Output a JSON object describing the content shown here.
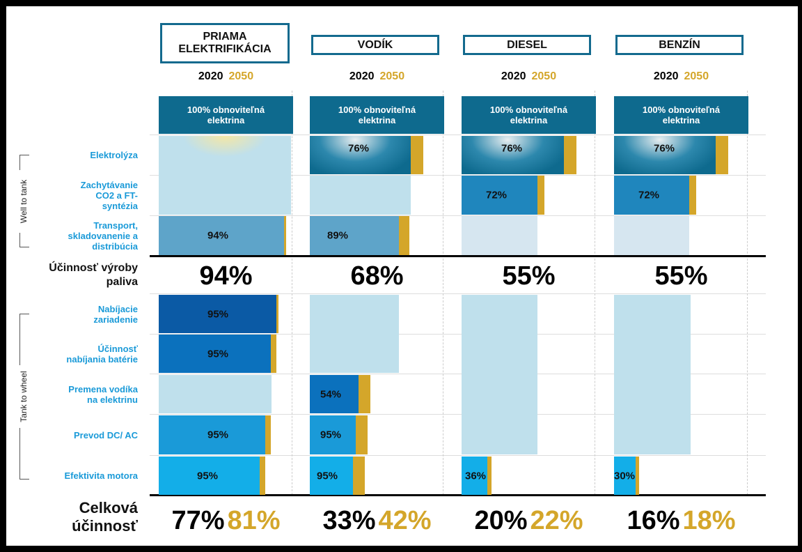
{
  "side_labels": [
    "Well to tank",
    "Tank to wheel"
  ],
  "row_labels": {
    "electrolysis": "Elektrolýza",
    "capture": "Zachytávanie CO2 a FT-syntézia",
    "transport": "Transport, skladovanenie a distribúcia",
    "charging": "Nabíjacie zariadenie",
    "battery": "Účinnosť nabíjania batérie",
    "conversion": "Premena vodíka na elektrinu",
    "dcac": "Prevod DC/ AC",
    "motor": "Efektivita motora"
  },
  "fuel_efficiency_label": "Účinnosť výroby paliva",
  "total_label": "Celková účinnosť",
  "columns": [
    {
      "title": "PRIAMA ELEKTRIFIKÁCIA",
      "years": [
        "2020",
        "2050"
      ],
      "source": "100% obnoviteľná elektrina",
      "steps": {
        "transport": "94%",
        "charging": "95%",
        "battery": "95%",
        "dcac": "95%",
        "motor": "95%"
      },
      "fuel_efficiency": "94%",
      "total": [
        "77%",
        "81%"
      ]
    },
    {
      "title": "VODÍK",
      "years": [
        "2020",
        "2050"
      ],
      "source": "100% obnoviteľná elektrina",
      "steps": {
        "electrolysis": "76%",
        "transport": "89%",
        "conversion": "54%",
        "dcac": "95%",
        "motor": "95%"
      },
      "fuel_efficiency": "68%",
      "total": [
        "33%",
        "42%"
      ]
    },
    {
      "title": "DIESEL",
      "years": [
        "2020",
        "2050"
      ],
      "source": "100% obnoviteľná elektrina",
      "steps": {
        "electrolysis": "76%",
        "capture": "72%",
        "motor": "36%"
      },
      "fuel_efficiency": "55%",
      "total": [
        "20%",
        "22%"
      ]
    },
    {
      "title": "BENZÍN",
      "years": [
        "2020",
        "2050"
      ],
      "source": "100% obnoviteľná elektrina",
      "steps": {
        "electrolysis": "76%",
        "capture": "72%",
        "motor": "30%"
      },
      "fuel_efficiency": "55%",
      "total": [
        "16%",
        "18%"
      ]
    }
  ]
}
